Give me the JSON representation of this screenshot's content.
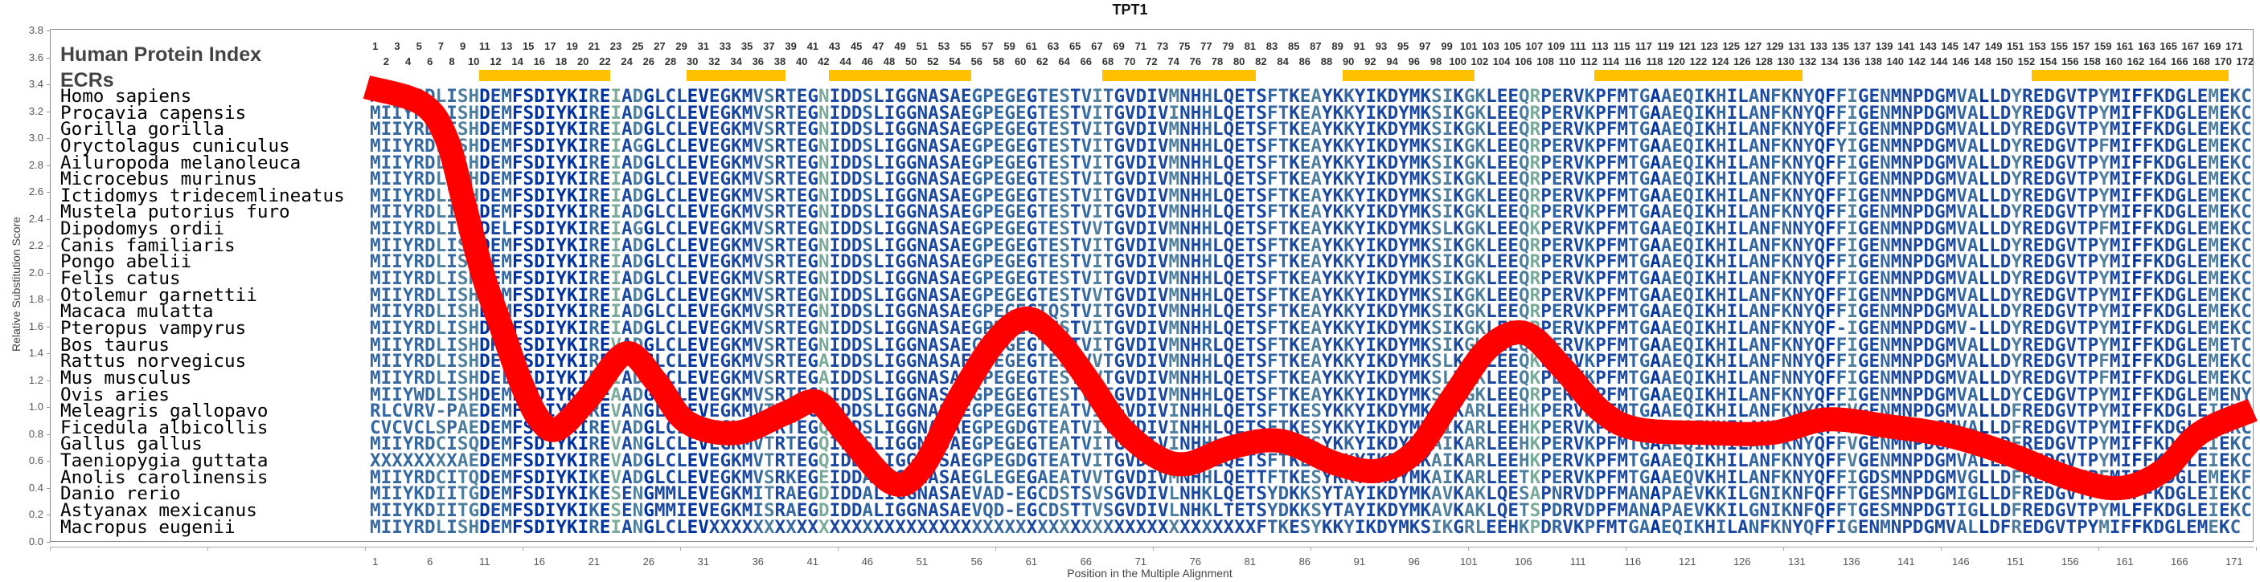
{
  "chart_data": {
    "type": "line",
    "title": "TPT1",
    "xlabel": "Position in the Multiple Alignment",
    "ylabel": "Relative Substitution Score",
    "ylim": [
      0,
      3.8
    ],
    "xlim": [
      1,
      172
    ],
    "y_ticks": [
      "0.0",
      "0.2",
      "0.4",
      "0.6",
      "0.8",
      "1.0",
      "1.2",
      "1.4",
      "1.6",
      "1.8",
      "2.0",
      "2.2",
      "2.4",
      "2.6",
      "2.8",
      "3.0",
      "3.2",
      "3.4",
      "3.6",
      "3.8"
    ],
    "x_ticks": [
      "1",
      "6",
      "11",
      "16",
      "21",
      "26",
      "31",
      "36",
      "41",
      "46",
      "51",
      "56",
      "61",
      "66",
      "71",
      "76",
      "81",
      "86",
      "91",
      "96",
      "101",
      "106",
      "111",
      "116",
      "121",
      "126",
      "131",
      "136",
      "141",
      "146",
      "151",
      "156",
      "161",
      "166",
      "171"
    ],
    "grid": false,
    "series": [
      {
        "name": "Relative Substitution Score",
        "color": "#ff0000",
        "x": [
          0.2,
          5.2,
          7.5,
          9.2,
          10.9,
          12.6,
          14.3,
          16,
          17.7,
          20.5,
          23.9,
          26.7,
          29.5,
          34,
          38.6,
          41.4,
          44,
          48.2,
          51,
          54.4,
          57.8,
          60.6,
          63.4,
          66.3,
          69.1,
          72.5,
          75.3,
          79.2,
          83.8,
          88.9,
          92.8,
          96.2,
          99.5,
          102.9,
          106.2,
          109.6,
          113,
          116.3,
          122.5,
          128.7,
          133.7,
          139.3,
          144.9,
          150.5,
          156.1,
          160.6,
          164.5,
          167.9,
          172.7
        ],
        "y": [
          3.38,
          3.26,
          3.0,
          2.49,
          1.97,
          1.58,
          1.19,
          0.91,
          0.84,
          1.07,
          1.4,
          1.19,
          0.89,
          0.81,
          0.96,
          1.04,
          0.81,
          0.44,
          0.55,
          1.07,
          1.5,
          1.66,
          1.5,
          1.19,
          0.86,
          0.63,
          0.58,
          0.7,
          0.75,
          0.58,
          0.53,
          0.68,
          1.07,
          1.45,
          1.55,
          1.29,
          0.98,
          0.84,
          0.81,
          0.81,
          0.91,
          0.86,
          0.79,
          0.65,
          0.47,
          0.4,
          0.53,
          0.81,
          0.98
        ]
      }
    ]
  },
  "panel": {
    "header": "Human Protein Index",
    "ecr_label": "ECRs",
    "column_numbers": {
      "first": 1,
      "last": 172
    },
    "ecr_color": "#ffc000",
    "ecrs": [
      [
        11,
        22
      ],
      [
        30,
        38
      ],
      [
        43,
        55
      ],
      [
        68,
        81
      ],
      [
        90,
        101
      ],
      [
        113,
        131
      ],
      [
        153,
        170
      ]
    ]
  },
  "alignment": [
    {
      "species": "Homo sapiens",
      "seq": "MIIYRDLISHDEMFSDIYKIREIADGLCLEVEGKMVSRTEGNIDDSLIGGNASAEGPEGEGTESTVITGVDIVMNHHLQETSFTKEAYKKYIKDYMKSIKGKLEEQRPERVKPFMTGAAEQIKHILANFKNYQFFIGENMNPDGMVALLDYREDGVTPYMIFFKDGLEMEKC"
    },
    {
      "species": "Procavia capensis",
      "seq": "MIIYRDLISHDEMFSDIYKIREIADGLCLEVEGKMVSRTEGNIDDSLIGGNASAEGPEGEGTESTVITGVDIVINHHLQETSFTKEAYKKYIKDYMKSIKGKLEEQRPERVKPFMTGAAEQIKHILANFKNYQFFIGENMNPDGMVALLDYREDGVTPYMIFFKDGLEMEKC"
    },
    {
      "species": "Gorilla gorilla",
      "seq": "MIIYRDLISHDEMFSDIYKIREIADGLCLEVEGKMVSRTEGNIDDSLIGGNASAEGPEGEGTESTVITGVDIVMNHHLQETSFTKEAYKKYIKDYMKSIKGKLEEQRPERVKPFMTGAAEQIKHILANFKNYQFFIGENMNPDGMVALLDYREDGVTPYMIFFKDGLEMEKC"
    },
    {
      "species": "Oryctolagus cuniculus",
      "seq": "MIIYRDLISHDEMFSDIYKIREIAGGLCLEVEGKMVSRTEGNIDDSLIGGNASAEGPEGEGTESTVITGVDIVMNHHLQETSFTKEAYKKYIKDYMKSIKGKLEEQRPERVKPFMTGAAEQIKHILANFKNYQFYIGENMNPDGMVALLDYREDGVTPFMIFFKDGLEMEKC"
    },
    {
      "species": "Ailuropoda melanoleuca",
      "seq": "MIIYRDLISHDEMFSDIYKIREIADGLCLEVEGKMVSRTEGNIDDSLIGGNASAEGPEGEGTESTVITGVDIVMNHHLQETSFTKEAYKKYIKDYMKSIKGKLEEQRPERVKPFMTGAAEQIKHILANFKNYQFFIGENMNPDGMVALLDYREDGVTPYMIFFKDGLEMEKC"
    },
    {
      "species": "Microcebus murinus",
      "seq": "MIIYRDLISHDEMFSDIYKIREIADGLCLEVEGKMVSRTEGNIDDSLIGGNASAEGPEGEGTESTVITGVDIVMNHHLQETSFTKEAYKKYIKDYMKSIKGKLEEQRPERVKPFMTGAAEQIKHILANFKNYQFFIGENMNPDGMVALLDYREDGVTPYMIFFKDGLEMEKC"
    },
    {
      "species": "Ictidomys tridecemlineatus",
      "seq": "MIIYRDLISHDEMFSDIYKIREIADGLCLEVEGKMVSRTEGNIDDSLIGGNASAEGPEGEGTESTVITGVDIVMNHHLQETSFTKEAYKKYIKDYMKSIKGKLEEQRPERVKPFMTGAAEQIKHILANFKNYQFFIGENMNPDGMVALLDYREDGVTPYMIFFKDGLEMEKC"
    },
    {
      "species": "Mustela putorius furo",
      "seq": "MIIYRDLISHDEMFSDIYKIREIADGLCLEVEGKMVSRTEGNIDDSLIGGNASAEGPEGEGTESTVITGVDIVMNHHLQETSFTKEAYKKYIKDYMKSIKGKLEEQRPERVKPFMTGAAEQIKHILANFKNYQFFIGENMNPDGMVALLDYREDGVTPYMIFFKDGLEMEKC"
    },
    {
      "species": "Dipodomys ordii",
      "seq": "MIIYRDLISHDELFSDIYKIREIAGGLCLEVEGKMVSRTEGNIDDSLIGGNASAEGPEGEGTESTVVTGVDIVMNHHLQETSFTKEAYKKYIKDYMKSLKGKLEEQKPERVKPFMTGAAEQIKHILANFNNYQFFIGENMNPDGMVALLDYREDGVTPFMIFFKDGLEMEKC"
    },
    {
      "species": "Canis familiaris",
      "seq": "MIIYRDLISHDEMFSDIYKIREIADGLCLEVEGKMVSRTEGNIDDSLIGGNASAEGPEGEGTESTVITGVDIVMNHHLQETSFTKEAYKKYIKDYMKSIKGKLEEQRPERVKPFMTGAAEQIKHILANFKNYQFFIGENMNPDGMVALLDYREDGVTPYMIFFKDGLEMEKC"
    },
    {
      "species": "Pongo abelii",
      "seq": "MIIYRDLISHDEMFSDIYKIREIADGLCLEVEGKMVSRTEGNIDDSLIGGNASAEGPEGEGTESTVITGVDIVMNHHLQETSFTKEAYKKYIKDYMKSIKGKLEEQRPERVKPFMTGAAEQIKHILANFKNYQFFIGENMNPDGMVALLDYREDGVTPYMIFFKDGLEMEKC"
    },
    {
      "species": "Felis catus",
      "seq": "MIIYRDLISHDEMFSDIYKIREIADGLCLEVEGKMVSRTEGNIDDSLIGGNASAEGPEGEGTESTVITGVDIVMNHHLQETSFTKEAYKKYIKDYMKSIKGKLEEQRPERVKPFMTGAAEQIKHILANFKNYQFFIGENMNPDGMVALLDYREDGVTPYMIFFKDGLEMEKC"
    },
    {
      "species": "Otolemur garnettii",
      "seq": "MIIYRDLISHDEMFSDIYKIREIADGLCLEVEGKMVSRTEGNIDDSLIGGNASAEGPEGEGTESTVVTGVDIVMNHHLQETSFTKEAYKKYIKDYMKSIKGKLEEQRPERVKPFMTGAAEQIKHILANFKNYQFFIGENMNPDGMVALLDYREDGVTPYMIFFKDGLEMEKC"
    },
    {
      "species": "Macaca mulatta",
      "seq": "MIIYRDLISHDEMFSDIYKIREIADGLCLEVEGKMVSRTEGNIDDSLIGGNASAEGPEGEGTQSTVITGVDIVMNHHLQETSFTKEAYKKYIKDYMKSIKGKLEEQRPERVKPFMTGAAEQIKHILANFKNYQFFIGENMNPDGMVALLDYREDGVTPYMIFFKDGLEMEKC"
    },
    {
      "species": "Pteropus vampyrus",
      "seq": "MIIYRDLISHDEMFSDIYKIREIADGLCLEVEGKMVSRTEGNIDDSLIGGNASAEGPDGEGTESTVITGVDIVMNHHLQETSFTKEAYKKYIKDYMKSIKGKLEEQRPERVKPFMTGAAEQIKHILANFKNYQF-IGENMNPDGMV-LLDYREDGVTPYMIFFKDGLEMEKC"
    },
    {
      "species": "Bos taurus",
      "seq": "MIIYRDLISHDKMFSDIYKIREVADGLCLEVEGKMVSRTEGNIDDSLIGGNASAEGPDGEGTESTVITGVDIVMNHRLQETSFTKEAYKKYIKDYMKSIKGKLEEQRPERVKPFMTGAAEQIKHILANFKNYQFFIGENMNPDGMVALLDYREDGVTPYMIFFKDGLEMETC"
    },
    {
      "species": "Rattus norvegicus",
      "seq": "MIIYRDLISHDELFSDIYKIREIADGLCLEVEGKMVSRTEGAIDDSLIGGNASAEGPEGEGTESTVVTGVDIVMNHHLQETSFTKEAYKKYIKDYMKSLKGKLEEQKPERVKPFMTGAAEQIKHILANFNNYQFFIGENMNPDGMVALLDYREDGVTPFMIFFKDGLEMEKC"
    },
    {
      "species": "Mus musculus",
      "seq": "MIIYRDLISHDELFSDIYKIREIADGLCLEVEGKMVSRTEGAIDDSLIGGNASAEGPEGEGTESTVVTGVDIVMNHHLQETSFTKEAYKKYIKDYMKSLKGKLEEQKPERVKPFMTGAAEQIKHILANFNNYQFFIGENMNPDGMVALLDYREDGVTPFMIFFKDGLEMEKC"
    },
    {
      "species": "Ovis aries",
      "seq": "MIIYWDLISHDEMFSDIYKIREAADGLCLEVEGKMVSRTEGNIDDSLIGGNASAEGPEGEGTESTVITGVDIVMNHHLQETSFTKEAYKKYIKDYMKSIKGKLEEQRPERVKPFMTGAAEQIKHILANFKNYQFFIGENMNPDGMVALLDYCEDGVTPYMIFFKDGLEMENY"
    },
    {
      "species": "Meleagris gallopavo",
      "seq": "RLCVRV-PAEDEMFSDIYKIREVANGLCLEVEGKMVTRTEGQIDDSLIGGNASAEGPEGEGTEATVITGVDIVINHHLQETSFTKESYKKYIKDYMKAIKARLEEHKPERVKPFMTGAAEQIKHILANFKNYQFFVGENMNPDGMVALLDFREDGVTPYMIFFKDGLEIEKC"
    },
    {
      "species": "Ficedula albicollis",
      "seq": "CVCVCLSPAEDEMFSDIYKIREVADGLCLEVEGKMVTRTEGQIDDSLIGGNASAEGPEGDGTEATVITGVDIVINHHLQETSFTKESYKKYIKDYMKAIKARLEEHKPERVKPFMTGAAEQIKHILANFKNYQFFVGENMNPDGMVALLDFREDGVTPYMIFFKDGLEIEKC"
    },
    {
      "species": "Gallus gallus",
      "seq": "MIIYRDCISQDEMFSDIYKIREVANGLCLEVEGKMVTRTEGQIDDSLIGGNASAEGPEGEGTEATVITGVDIVINHHLQETSFTKESYKKYIKDYMKAIKARLEEHKPERVKPFMTGAAEQIKHILANFKNYQFFVGENMNPDGMVALLDFREDGVTPYMIFFKDGLEIEKC"
    },
    {
      "species": "Taeniopygia guttata",
      "seq": "XXXXXXXXAEDEMFSDIYKIREVADGLCLEVEGKMVTRTEGQIDDSLIGGNASAEGPEGDGTEATVITGVDIVINHHLQETSFTKESYKKYIKDYMKAIKARLEEHKPERVKPFMTGAAEQIKHILANFKNYQFFVGENMNPDGMVALLDFREDGVTPYMIFFKDGLEIEKC"
    },
    {
      "species": "Anolis carolinensis",
      "seq": "MIIYRDCITQDEMFSDIYKIKEVADGLCLEVEGKMVSRKEGEIDDALIGGNASAEGLEGEGAEATVVTGVDIVMNHHLQETTFTKESYKKYIKDYMKAIKARLEETKPERVKPFMTGAAEQVKHILANFKNYQFFIGDSMNPDGMVGLLDFREDGVTPFMIFFKDGLEMEKF"
    },
    {
      "species": "Danio rerio",
      "seq": "MIIYKDIITGDEMFSDIYKIKESENGMMLEVEGKMITRAEGDIDDALIGGNASAEVAD-EGCDSTSVSGVDIVLNHKLQETSYDKKSYTAYIKDYMKAVKAKLQESAPNRVDPFMANAPAEVKKILGNIKNFQFFTGESMNPDGMIGLLDFREDGVTPYMIFFKDGLEIEKC"
    },
    {
      "species": "Astyanax mexicanus",
      "seq": "MIIYKDIITGDEMFSDIYKIKESENGMMIEVEGKMISRAEGDIDDALIGGNASAEVQD-EGCDSTTVSGVDIVLNHKLTETSYDKKSYTAYIKDYMKAVKAKLQETSPDRVDPFMANAPAEVKKILGNIKNFQFFTGESMNPDGTIGLLDFREDGVTPYMLFFKDGLEIEKC"
    },
    {
      "species": "Macropus eugenii",
      "seq": "MIIYRDLISHDEMFSDIYKIREIANGLCLEVXXXXXXXXXXXXXXXXXXXXXXXXXXXXXXXXXXXXXXXXXXXXXXXXXXFTKESYKKYIKDYMKSIKGRLEEHKPDRVKPFMTGAAEQIKHILANFKNYQFFIGENMNPDGMVALLDFREDGVTPYMIFFKDGLEMEKC"
    }
  ],
  "conservation_colors": [
    "#0033a0",
    "#1a47a0",
    "#3568a0",
    "#4f7f9c",
    "#7aaa9a"
  ]
}
